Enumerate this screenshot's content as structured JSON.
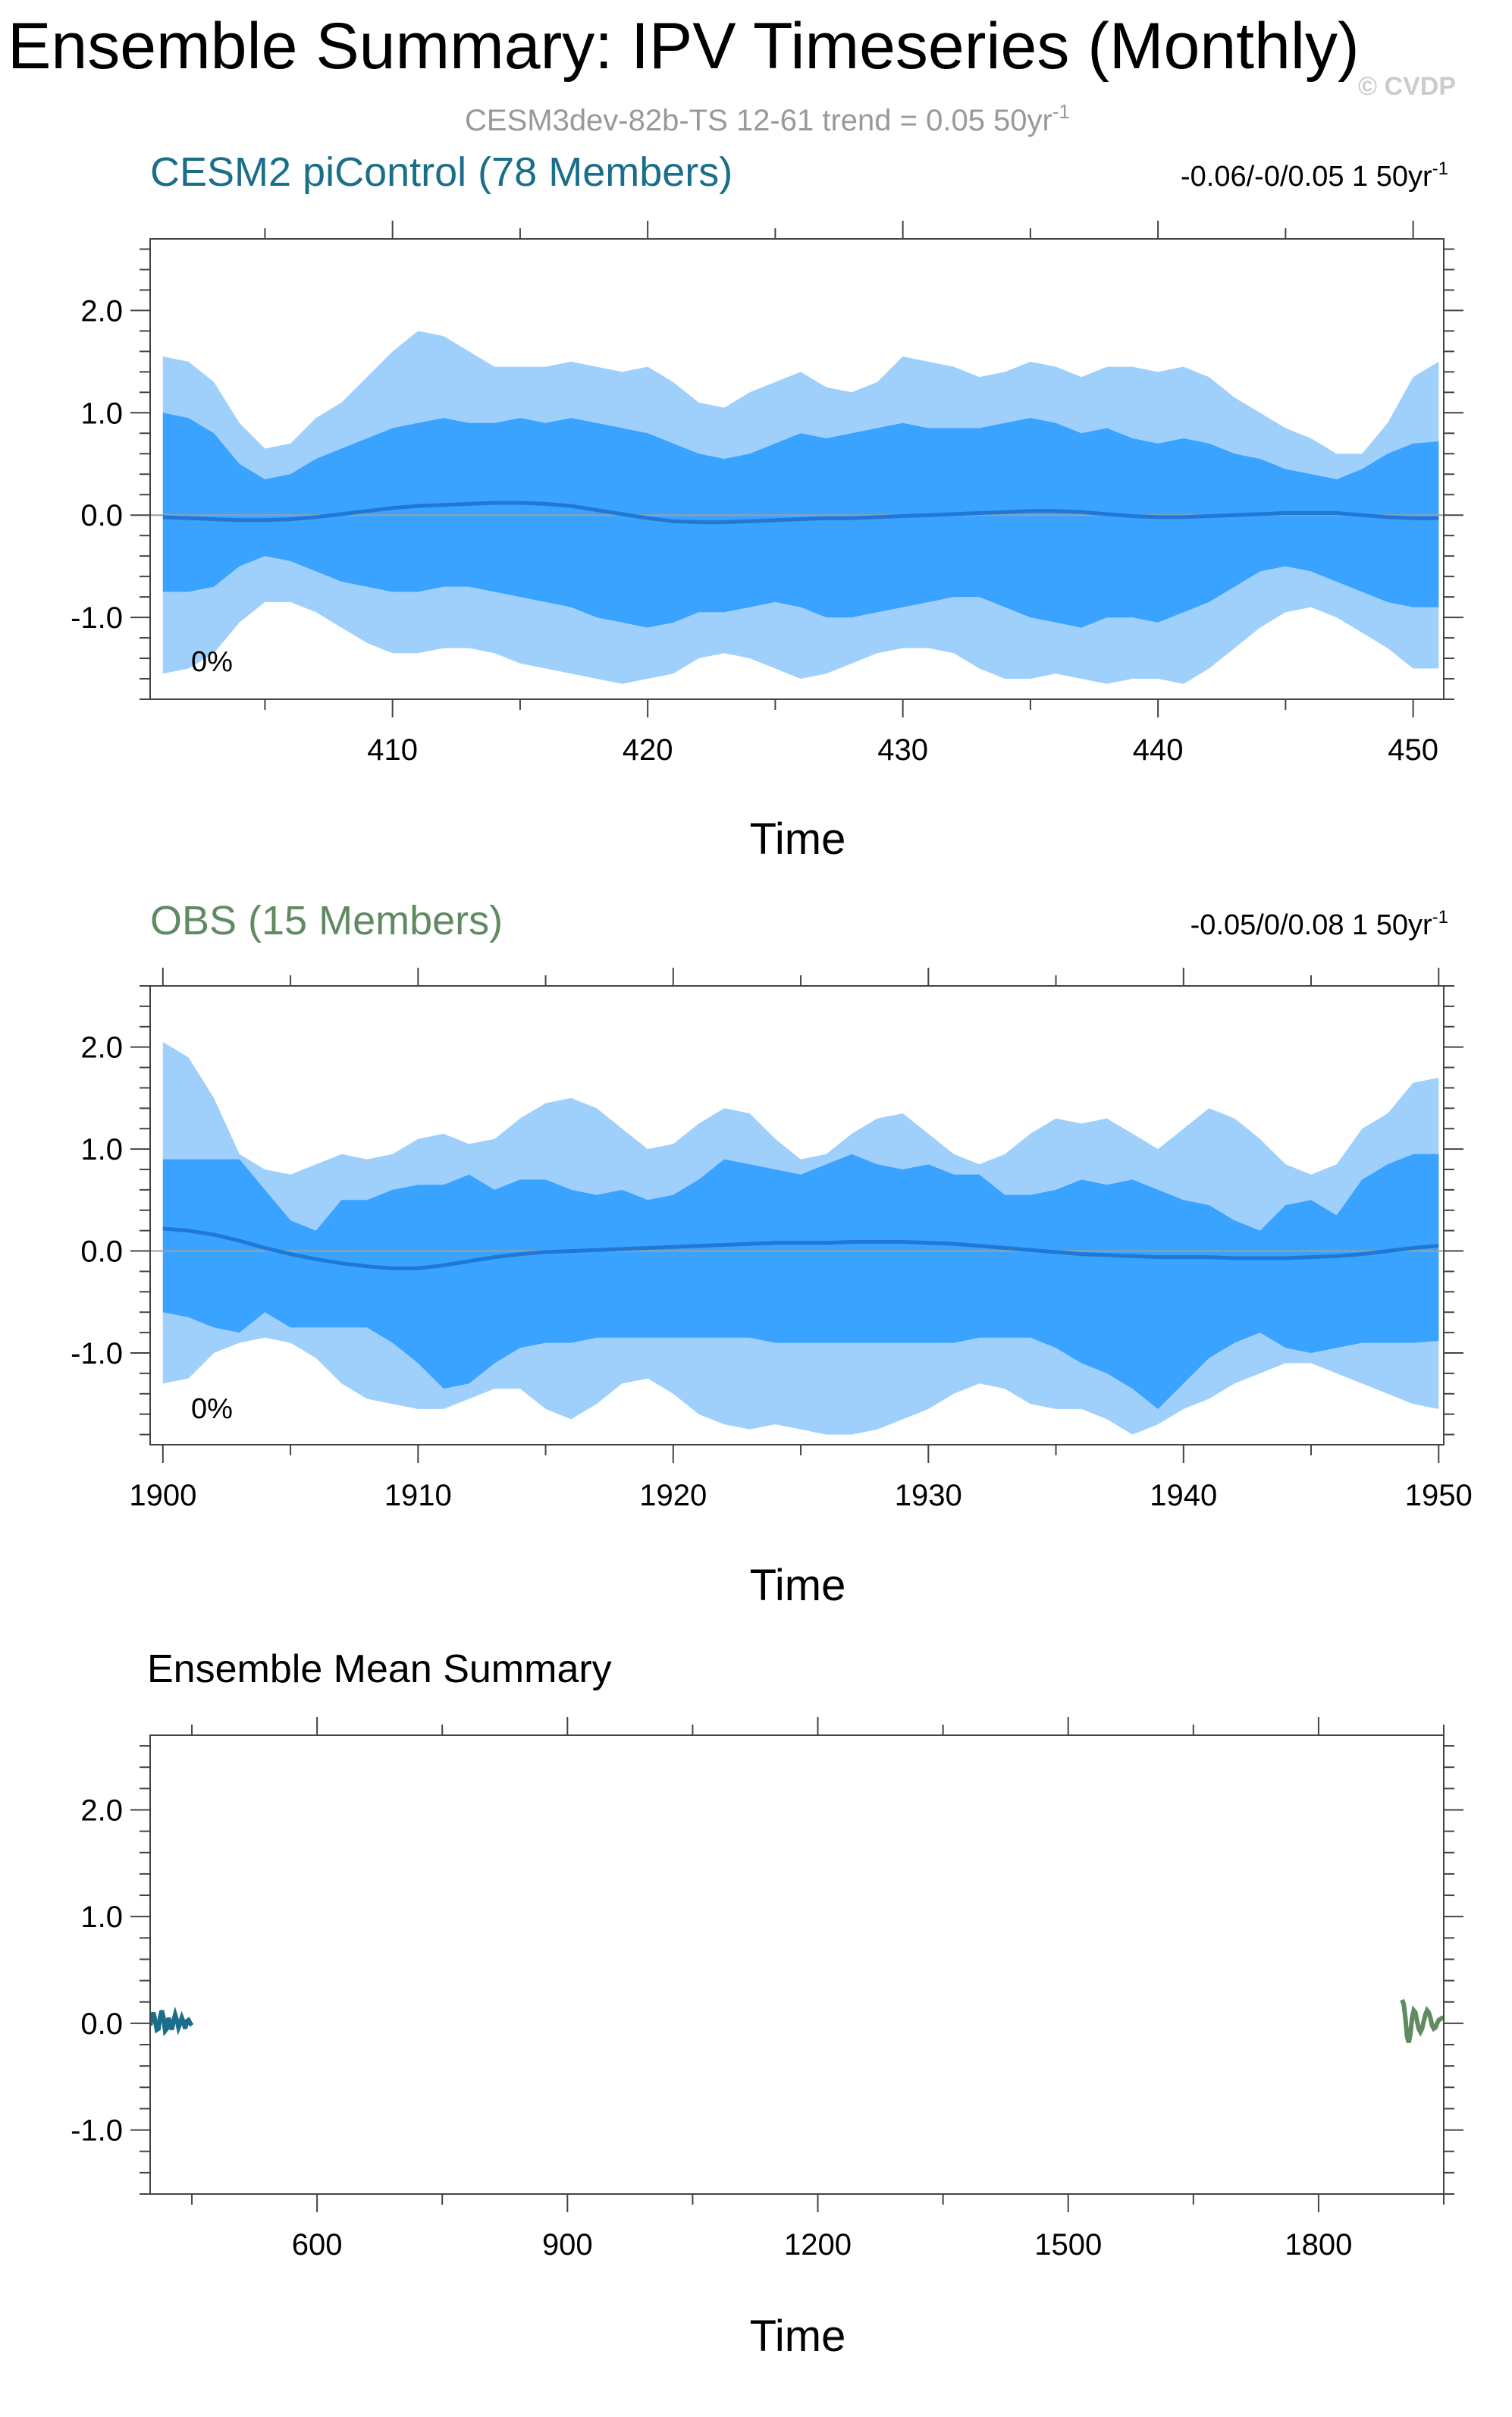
{
  "page": {
    "title": "Ensemble Summary: IPV Timeseries (Monthly)",
    "subtitle": "CESM3dev-82b-TS 12-61 trend = 0.05 50yr",
    "subtitle_sup": "-1",
    "watermark": "© CVDP"
  },
  "colors": {
    "cesm_title": "#1a6e8a",
    "obs_title": "#5f8a62",
    "outer_band": "#9fd0fb",
    "inner_band": "#3aa2ff",
    "mean_line": "#1f78d6",
    "zero_line": "#9aa0a6",
    "axis": "#444444",
    "subtitle_gray": "#999999"
  },
  "chart_data": [
    {
      "type": "area",
      "title": "CESM2 piControl (78 Members)",
      "right_note": "-0.06/-0/0.05 1 50yr",
      "right_note_sup": "-1",
      "percent_label": "0%",
      "xlabel": "Time",
      "ylabel": "",
      "xlim": [
        400.5,
        451.2
      ],
      "ylim": [
        -1.8,
        2.7
      ],
      "xticks": [
        410,
        420,
        430,
        440,
        450
      ],
      "xtick_labels": [
        "410",
        "420",
        "430",
        "440",
        "450"
      ],
      "yticks": [
        -1.0,
        0.0,
        1.0,
        2.0
      ],
      "ytick_labels": [
        "-1.0",
        "0.0",
        "1.0",
        "2.0"
      ],
      "x": [
        401,
        402,
        403,
        404,
        405,
        406,
        407,
        408,
        409,
        410,
        411,
        412,
        413,
        414,
        415,
        416,
        417,
        418,
        419,
        420,
        421,
        422,
        423,
        424,
        425,
        426,
        427,
        428,
        429,
        430,
        431,
        432,
        433,
        434,
        435,
        436,
        437,
        438,
        439,
        440,
        441,
        442,
        443,
        444,
        445,
        446,
        447,
        448,
        449,
        450,
        451
      ],
      "outer_upper": [
        1.55,
        1.5,
        1.3,
        0.9,
        0.65,
        0.7,
        0.95,
        1.1,
        1.35,
        1.6,
        1.8,
        1.75,
        1.6,
        1.45,
        1.45,
        1.45,
        1.5,
        1.45,
        1.4,
        1.45,
        1.3,
        1.1,
        1.05,
        1.2,
        1.3,
        1.4,
        1.25,
        1.2,
        1.3,
        1.55,
        1.5,
        1.45,
        1.35,
        1.4,
        1.5,
        1.45,
        1.35,
        1.45,
        1.45,
        1.4,
        1.45,
        1.35,
        1.15,
        1.0,
        0.85,
        0.75,
        0.6,
        0.6,
        0.9,
        1.35,
        1.5
      ],
      "inner_upper": [
        1.0,
        0.95,
        0.8,
        0.5,
        0.35,
        0.4,
        0.55,
        0.65,
        0.75,
        0.85,
        0.9,
        0.95,
        0.9,
        0.9,
        0.95,
        0.9,
        0.95,
        0.9,
        0.85,
        0.8,
        0.7,
        0.6,
        0.55,
        0.6,
        0.7,
        0.8,
        0.75,
        0.8,
        0.85,
        0.9,
        0.85,
        0.85,
        0.85,
        0.9,
        0.95,
        0.9,
        0.8,
        0.85,
        0.75,
        0.7,
        0.75,
        0.7,
        0.6,
        0.55,
        0.45,
        0.4,
        0.35,
        0.45,
        0.6,
        0.7,
        0.72
      ],
      "inner_lower": [
        -0.75,
        -0.75,
        -0.7,
        -0.5,
        -0.4,
        -0.45,
        -0.55,
        -0.65,
        -0.7,
        -0.75,
        -0.75,
        -0.7,
        -0.7,
        -0.75,
        -0.8,
        -0.85,
        -0.9,
        -1.0,
        -1.05,
        -1.1,
        -1.05,
        -0.95,
        -0.95,
        -0.9,
        -0.85,
        -0.9,
        -1.0,
        -1.0,
        -0.95,
        -0.9,
        -0.85,
        -0.8,
        -0.8,
        -0.9,
        -1.0,
        -1.05,
        -1.1,
        -1.0,
        -1.0,
        -1.05,
        -0.95,
        -0.85,
        -0.7,
        -0.55,
        -0.5,
        -0.55,
        -0.65,
        -0.75,
        -0.85,
        -0.9,
        -0.9
      ],
      "outer_lower": [
        -1.55,
        -1.5,
        -1.35,
        -1.05,
        -0.85,
        -0.85,
        -0.95,
        -1.1,
        -1.25,
        -1.35,
        -1.35,
        -1.3,
        -1.3,
        -1.35,
        -1.45,
        -1.5,
        -1.55,
        -1.6,
        -1.65,
        -1.6,
        -1.55,
        -1.4,
        -1.35,
        -1.4,
        -1.5,
        -1.6,
        -1.55,
        -1.45,
        -1.35,
        -1.3,
        -1.3,
        -1.35,
        -1.5,
        -1.6,
        -1.6,
        -1.55,
        -1.6,
        -1.65,
        -1.6,
        -1.6,
        -1.65,
        -1.5,
        -1.3,
        -1.1,
        -0.95,
        -0.9,
        -1.0,
        -1.15,
        -1.3,
        -1.5,
        -1.5
      ],
      "mean": [
        -0.02,
        -0.03,
        -0.04,
        -0.05,
        -0.05,
        -0.04,
        -0.02,
        0.01,
        0.04,
        0.07,
        0.09,
        0.1,
        0.11,
        0.12,
        0.12,
        0.11,
        0.09,
        0.05,
        0.01,
        -0.03,
        -0.06,
        -0.07,
        -0.07,
        -0.06,
        -0.05,
        -0.04,
        -0.03,
        -0.03,
        -0.02,
        -0.01,
        0.0,
        0.01,
        0.02,
        0.03,
        0.04,
        0.04,
        0.03,
        0.01,
        -0.01,
        -0.02,
        -0.02,
        -0.01,
        0.0,
        0.01,
        0.02,
        0.02,
        0.02,
        0.0,
        -0.02,
        -0.03,
        -0.03
      ]
    },
    {
      "type": "area",
      "title": "OBS (15 Members)",
      "right_note": "-0.05/0/0.08 1 50yr",
      "right_note_sup": "-1",
      "percent_label": "0%",
      "xlabel": "Time",
      "ylabel": "",
      "xlim": [
        1899.5,
        1950.2
      ],
      "ylim": [
        -1.9,
        2.6
      ],
      "xticks": [
        1900,
        1910,
        1920,
        1930,
        1940,
        1950
      ],
      "xtick_labels": [
        "1900",
        "1910",
        "1920",
        "1930",
        "1940",
        "1950"
      ],
      "yticks": [
        -1.0,
        0.0,
        1.0,
        2.0
      ],
      "ytick_labels": [
        "-1.0",
        "0.0",
        "1.0",
        "2.0"
      ],
      "x": [
        1900,
        1901,
        1902,
        1903,
        1904,
        1905,
        1906,
        1907,
        1908,
        1909,
        1910,
        1911,
        1912,
        1913,
        1914,
        1915,
        1916,
        1917,
        1918,
        1919,
        1920,
        1921,
        1922,
        1923,
        1924,
        1925,
        1926,
        1927,
        1928,
        1929,
        1930,
        1931,
        1932,
        1933,
        1934,
        1935,
        1936,
        1937,
        1938,
        1939,
        1940,
        1941,
        1942,
        1943,
        1944,
        1945,
        1946,
        1947,
        1948,
        1949,
        1950
      ],
      "outer_upper": [
        2.05,
        1.9,
        1.5,
        0.95,
        0.8,
        0.75,
        0.85,
        0.95,
        0.9,
        0.95,
        1.1,
        1.15,
        1.05,
        1.1,
        1.3,
        1.45,
        1.5,
        1.4,
        1.2,
        1.0,
        1.05,
        1.25,
        1.4,
        1.35,
        1.1,
        0.9,
        0.95,
        1.15,
        1.3,
        1.35,
        1.15,
        0.95,
        0.85,
        0.95,
        1.15,
        1.3,
        1.25,
        1.3,
        1.15,
        1.0,
        1.2,
        1.4,
        1.3,
        1.1,
        0.85,
        0.75,
        0.85,
        1.2,
        1.35,
        1.65,
        1.7
      ],
      "inner_upper": [
        0.9,
        0.9,
        0.9,
        0.9,
        0.6,
        0.3,
        0.2,
        0.5,
        0.5,
        0.6,
        0.65,
        0.65,
        0.75,
        0.6,
        0.7,
        0.7,
        0.6,
        0.55,
        0.6,
        0.5,
        0.55,
        0.7,
        0.9,
        0.85,
        0.8,
        0.75,
        0.85,
        0.95,
        0.85,
        0.8,
        0.85,
        0.75,
        0.75,
        0.55,
        0.55,
        0.6,
        0.7,
        0.65,
        0.7,
        0.6,
        0.5,
        0.45,
        0.3,
        0.2,
        0.45,
        0.5,
        0.35,
        0.7,
        0.85,
        0.95,
        0.95
      ],
      "inner_lower": [
        -0.6,
        -0.65,
        -0.75,
        -0.8,
        -0.6,
        -0.75,
        -0.75,
        -0.75,
        -0.75,
        -0.9,
        -1.1,
        -1.35,
        -1.3,
        -1.1,
        -0.95,
        -0.9,
        -0.9,
        -0.85,
        -0.85,
        -0.85,
        -0.85,
        -0.85,
        -0.85,
        -0.85,
        -0.9,
        -0.9,
        -0.9,
        -0.9,
        -0.9,
        -0.9,
        -0.9,
        -0.9,
        -0.85,
        -0.85,
        -0.85,
        -0.95,
        -1.1,
        -1.2,
        -1.35,
        -1.55,
        -1.3,
        -1.05,
        -0.9,
        -0.8,
        -0.95,
        -1.0,
        -0.95,
        -0.9,
        -0.9,
        -0.9,
        -0.88
      ],
      "outer_lower": [
        -1.3,
        -1.25,
        -1.0,
        -0.9,
        -0.85,
        -0.9,
        -1.05,
        -1.3,
        -1.45,
        -1.5,
        -1.55,
        -1.55,
        -1.45,
        -1.35,
        -1.35,
        -1.55,
        -1.65,
        -1.5,
        -1.3,
        -1.25,
        -1.4,
        -1.6,
        -1.7,
        -1.75,
        -1.7,
        -1.75,
        -1.8,
        -1.8,
        -1.75,
        -1.65,
        -1.55,
        -1.4,
        -1.3,
        -1.35,
        -1.5,
        -1.55,
        -1.55,
        -1.65,
        -1.8,
        -1.7,
        -1.55,
        -1.45,
        -1.3,
        -1.2,
        -1.1,
        -1.1,
        -1.2,
        -1.3,
        -1.4,
        -1.5,
        -1.55
      ],
      "mean": [
        0.22,
        0.2,
        0.16,
        0.1,
        0.03,
        -0.03,
        -0.08,
        -0.12,
        -0.15,
        -0.17,
        -0.17,
        -0.14,
        -0.1,
        -0.06,
        -0.03,
        -0.01,
        0.0,
        0.01,
        0.02,
        0.03,
        0.04,
        0.05,
        0.06,
        0.07,
        0.08,
        0.08,
        0.08,
        0.09,
        0.09,
        0.09,
        0.08,
        0.07,
        0.05,
        0.03,
        0.01,
        -0.01,
        -0.03,
        -0.04,
        -0.05,
        -0.06,
        -0.06,
        -0.06,
        -0.07,
        -0.07,
        -0.07,
        -0.06,
        -0.05,
        -0.03,
        0.0,
        0.03,
        0.05
      ]
    },
    {
      "type": "line",
      "title": "Ensemble Mean Summary",
      "xlabel": "Time",
      "ylabel": "",
      "xlim": [
        400,
        1950
      ],
      "ylim": [
        -1.6,
        2.7
      ],
      "xticks": [
        600,
        900,
        1200,
        1500,
        1800
      ],
      "xtick_labels": [
        "600",
        "900",
        "1200",
        "1500",
        "1800"
      ],
      "yticks": [
        -1.0,
        0.0,
        1.0,
        2.0
      ],
      "ytick_labels": [
        "-1.0",
        "0.0",
        "1.0",
        "2.0"
      ],
      "series": [
        {
          "color": "#1a6e8a",
          "x": [
            400,
            402,
            404,
            406,
            408,
            410,
            412,
            414,
            416,
            418,
            420,
            422,
            424,
            426,
            428,
            430,
            432,
            434,
            436,
            438,
            440,
            442,
            444,
            446,
            448,
            450
          ],
          "y": [
            -0.02,
            0.05,
            0.1,
            0.02,
            -0.06,
            -0.05,
            0.06,
            0.12,
            0.05,
            -0.07,
            -0.05,
            0.05,
            0.0,
            -0.06,
            0.02,
            0.08,
            0.03,
            -0.04,
            0.0,
            0.05,
            0.01,
            -0.05,
            0.02,
            0.03,
            0.0,
            -0.02
          ]
        },
        {
          "color": "#5f8a62",
          "x": [
            1900,
            1902,
            1904,
            1906,
            1908,
            1910,
            1912,
            1914,
            1916,
            1918,
            1920,
            1922,
            1924,
            1926,
            1928,
            1930,
            1932,
            1934,
            1936,
            1938,
            1940,
            1942,
            1944,
            1946,
            1948,
            1950
          ],
          "y": [
            0.22,
            0.18,
            0.05,
            -0.12,
            -0.18,
            -0.1,
            0.05,
            0.12,
            0.1,
            0.02,
            -0.05,
            -0.08,
            -0.05,
            0.02,
            0.08,
            0.12,
            0.1,
            0.05,
            -0.02,
            -0.05,
            -0.04,
            0.0,
            0.03,
            0.04,
            0.05,
            0.05
          ]
        }
      ]
    }
  ]
}
